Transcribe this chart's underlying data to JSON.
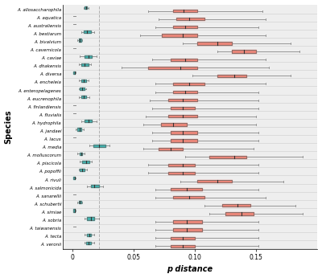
{
  "species": [
    "A. allosaccharophila",
    "A. aquatica",
    "A. australiensis",
    "A. bestiarum",
    "A. bivalvium",
    "A. cavernicola",
    "A. caviae",
    "A. dhakensis",
    "A. diversa",
    "A. encheleia",
    "A. enteropelagenes",
    "A. eucrenophila",
    "A. finlandiensis",
    "A. fluvialis",
    "A. hydrophila",
    "A. jandaei",
    "A. lacus",
    "A. media",
    "A. molluscorum",
    "A. piscicola",
    "A. popoffii",
    "A. rivuli",
    "A. salmonicida",
    "A. sanarellii",
    "A. schubertii",
    "A. simiae",
    "A. sobria",
    "A. taiwanensis",
    "A. tecta",
    "A. veronii"
  ],
  "intra": [
    [
      0.009,
      0.01,
      0.011,
      0.012,
      0.013
    ],
    null,
    null,
    [
      0.007,
      0.009,
      0.012,
      0.015,
      0.018
    ],
    [
      0.004,
      0.005,
      0.006,
      0.007,
      0.008
    ],
    null,
    [
      0.006,
      0.01,
      0.013,
      0.016,
      0.02
    ],
    [
      0.005,
      0.007,
      0.01,
      0.013,
      0.015
    ],
    [
      0.001,
      0.001,
      0.002,
      0.002,
      0.003
    ],
    [
      0.005,
      0.007,
      0.009,
      0.011,
      0.013
    ],
    [
      0.005,
      0.006,
      0.008,
      0.01,
      0.011
    ],
    [
      0.005,
      0.007,
      0.009,
      0.011,
      0.014
    ],
    null,
    null,
    [
      0.007,
      0.01,
      0.013,
      0.016,
      0.02
    ],
    [
      0.003,
      0.004,
      0.006,
      0.007,
      0.009
    ],
    null,
    [
      0.014,
      0.017,
      0.022,
      0.027,
      0.03
    ],
    [
      0.004,
      0.006,
      0.007,
      0.008,
      0.01
    ],
    [
      0.006,
      0.008,
      0.011,
      0.014,
      0.016
    ],
    [
      0.005,
      0.006,
      0.008,
      0.01,
      0.012
    ],
    [
      0.001,
      0.001,
      0.002,
      0.002,
      0.003
    ],
    [
      0.012,
      0.015,
      0.018,
      0.022,
      0.025
    ],
    null,
    [
      0.004,
      0.005,
      0.006,
      0.007,
      0.008
    ],
    [
      0.001,
      0.001,
      0.002,
      0.002,
      0.003
    ],
    [
      0.01,
      0.012,
      0.015,
      0.018,
      0.022
    ],
    null,
    [
      0.01,
      0.012,
      0.014,
      0.015,
      0.018
    ],
    [
      0.01,
      0.011,
      0.013,
      0.015,
      0.018
    ]
  ],
  "inter": [
    [
      0.062,
      0.082,
      0.091,
      0.102,
      0.155
    ],
    [
      0.07,
      0.085,
      0.095,
      0.108,
      0.158
    ],
    [
      0.068,
      0.082,
      0.092,
      0.102,
      0.152
    ],
    [
      0.055,
      0.073,
      0.09,
      0.102,
      0.158
    ],
    [
      0.09,
      0.102,
      0.118,
      0.13,
      0.178
    ],
    [
      0.118,
      0.13,
      0.14,
      0.15,
      0.185
    ],
    [
      0.065,
      0.08,
      0.092,
      0.102,
      0.158
    ],
    [
      0.04,
      0.062,
      0.088,
      0.102,
      0.16
    ],
    [
      0.098,
      0.118,
      0.132,
      0.142,
      0.178
    ],
    [
      0.068,
      0.082,
      0.095,
      0.108,
      0.158
    ],
    [
      0.068,
      0.082,
      0.092,
      0.102,
      0.152
    ],
    [
      0.063,
      0.078,
      0.09,
      0.102,
      0.152
    ],
    [
      0.065,
      0.08,
      0.09,
      0.1,
      0.152
    ],
    [
      0.06,
      0.078,
      0.09,
      0.102,
      0.15
    ],
    [
      0.058,
      0.072,
      0.082,
      0.093,
      0.15
    ],
    [
      0.065,
      0.08,
      0.09,
      0.102,
      0.152
    ],
    [
      0.065,
      0.08,
      0.09,
      0.102,
      0.152
    ],
    [
      0.058,
      0.07,
      0.08,
      0.09,
      0.148
    ],
    [
      0.092,
      0.112,
      0.132,
      0.142,
      0.188
    ],
    [
      0.062,
      0.078,
      0.09,
      0.1,
      0.152
    ],
    [
      0.062,
      0.078,
      0.09,
      0.1,
      0.152
    ],
    [
      0.088,
      0.102,
      0.118,
      0.13,
      0.172
    ],
    [
      0.068,
      0.08,
      0.093,
      0.106,
      0.152
    ],
    [
      0.068,
      0.082,
      0.095,
      0.108,
      0.158
    ],
    [
      0.108,
      0.122,
      0.135,
      0.145,
      0.182
    ],
    [
      0.112,
      0.125,
      0.138,
      0.148,
      0.188
    ],
    [
      0.068,
      0.082,
      0.093,
      0.106,
      0.152
    ],
    [
      0.068,
      0.082,
      0.093,
      0.106,
      0.152
    ],
    [
      0.068,
      0.08,
      0.09,
      0.1,
      0.152
    ],
    [
      0.068,
      0.08,
      0.09,
      0.1,
      0.152
    ]
  ],
  "teal_color": "#2eaaa5",
  "salmon_color": "#e8796a",
  "bg_color": "#eeeeee",
  "dashed_line_x": 0.022,
  "xlim": [
    -0.008,
    0.2
  ],
  "xticks": [
    0,
    0.05,
    0.1,
    0.15
  ],
  "xlabel": "p distance",
  "ylabel": "Species"
}
